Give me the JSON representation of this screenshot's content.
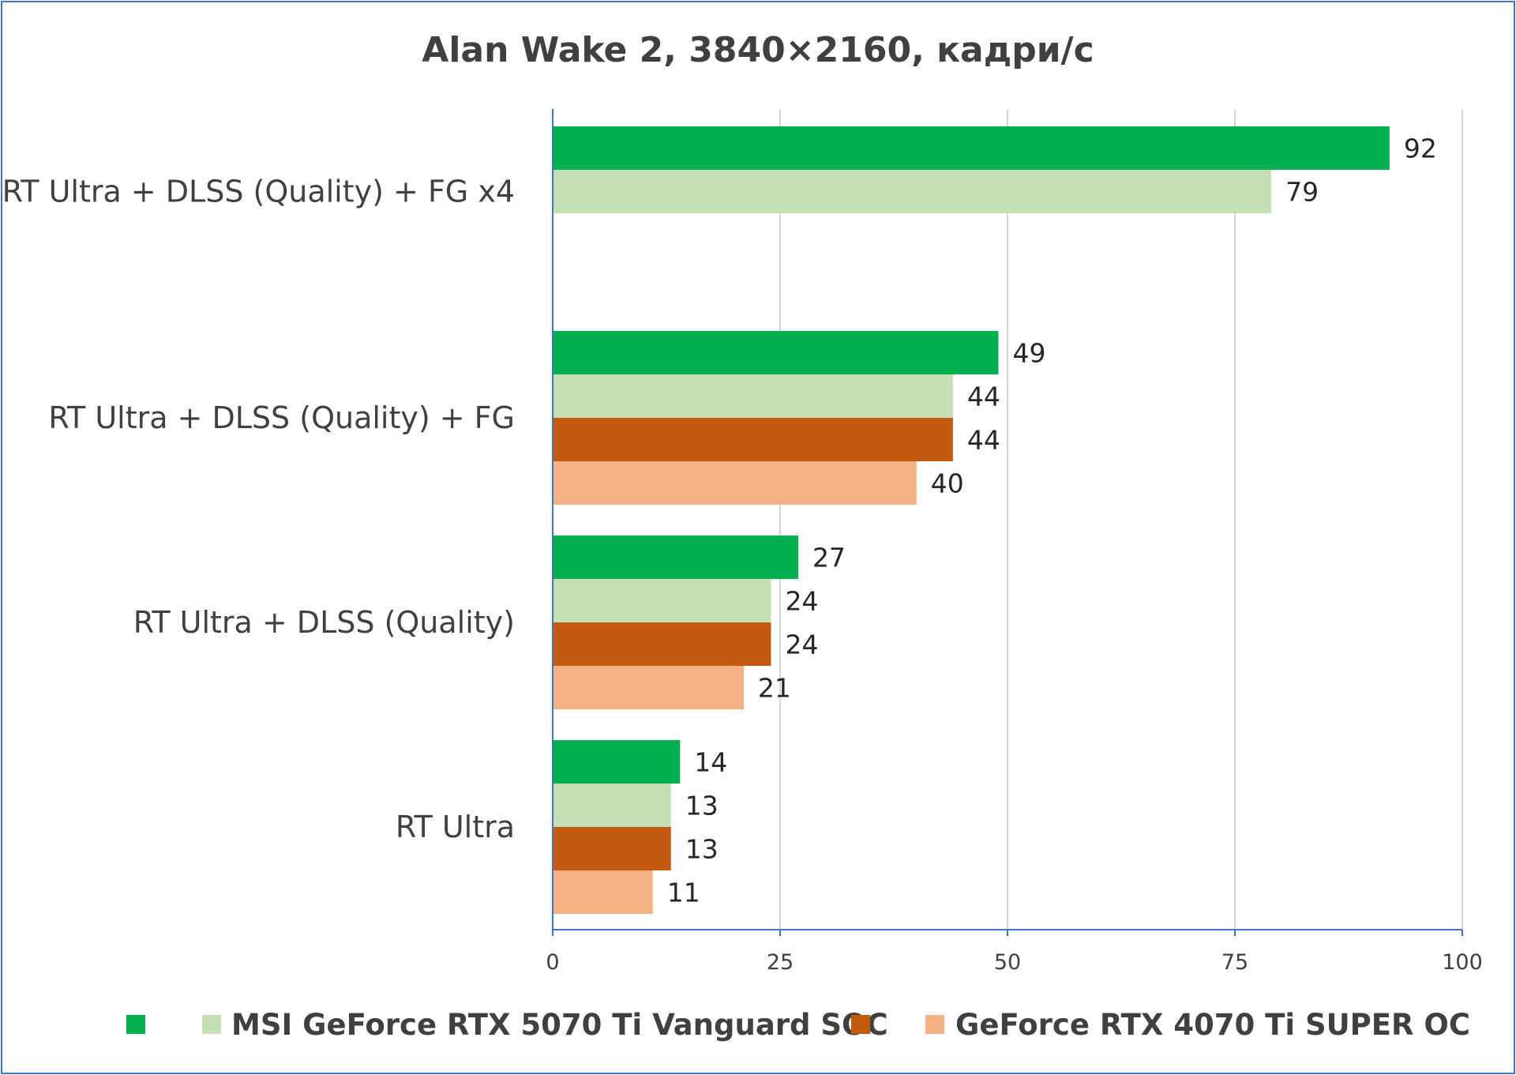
{
  "chart_data": {
    "type": "bar",
    "orientation": "horizontal",
    "title": "Alan Wake 2, 3840×2160, кадри/с",
    "categories": [
      "RT Ultra + DLSS (Quality) + FG x4",
      "RT Ultra + DLSS (Quality) + FG",
      "RT Ultra + DLSS (Quality)",
      "RT Ultra"
    ],
    "series": [
      {
        "color": "#00b050",
        "values": [
          92,
          49,
          27,
          14
        ]
      },
      {
        "name": "MSI GeForce RTX 5070 Ti Vanguard SOC",
        "color": "#c5e0b4",
        "values": [
          79,
          44,
          24,
          13
        ]
      },
      {
        "color": "#c55a11",
        "values": [
          null,
          44,
          24,
          13
        ]
      },
      {
        "name": "GeForce RTX 4070 Ti SUPER OC",
        "color": "#f4b183",
        "values": [
          null,
          40,
          21,
          11
        ]
      }
    ],
    "xlim": [
      0,
      100
    ],
    "x_ticks": [
      "0",
      "25",
      "50",
      "75",
      "100"
    ],
    "grid": true,
    "legend_position": "bottom"
  }
}
